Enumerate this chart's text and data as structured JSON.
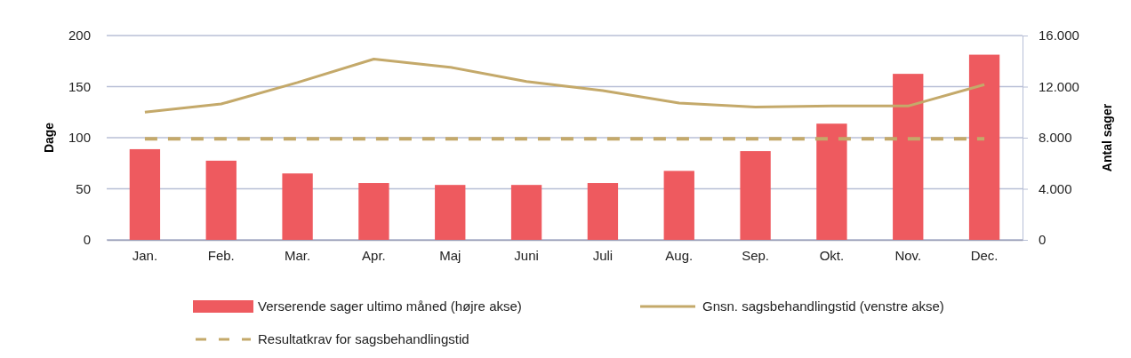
{
  "chart_data": {
    "type": "bar",
    "ylabel": "Dage",
    "y2label": "Antal sager",
    "categories": [
      "Jan.",
      "Feb.",
      "Mar.",
      "Apr.",
      "Maj",
      "Juni",
      "Juli",
      "Aug.",
      "Sep.",
      "Okt.",
      "Nov.",
      "Dec."
    ],
    "series": [
      {
        "name": "Verserende sager ultimo måned (højre akse)",
        "axis": "y2",
        "color": "#ee5a5f",
        "values": [
          7100,
          6200,
          5200,
          4450,
          4300,
          4300,
          4450,
          5400,
          6950,
          9100,
          13000,
          14500
        ]
      },
      {
        "name": "Gnsn. sagsbehandlingstid (venstre akse)",
        "type": "line",
        "color": "#c4a96a",
        "line_style": "solid",
        "values": [
          125,
          133,
          154,
          177,
          169,
          155,
          146,
          134,
          130,
          131,
          131,
          152
        ]
      },
      {
        "name": "Resultatkrav for sagsbehandlingstid",
        "type": "line",
        "color": "#c4a96a",
        "line_style": "dashed",
        "values": [
          99,
          99,
          99,
          99,
          99,
          99,
          99,
          99,
          99,
          99,
          99,
          99
        ]
      }
    ],
    "ylim": [
      0,
      200
    ],
    "yticks": [
      0,
      50,
      100,
      150,
      200
    ],
    "y2lim": [
      0,
      16000
    ],
    "y2ticks": [
      {
        "value": 0,
        "label": "0"
      },
      {
        "value": 4000,
        "label": "4.000"
      },
      {
        "value": 8000,
        "label": "8.000"
      },
      {
        "value": 12000,
        "label": "12.000"
      },
      {
        "value": 16000,
        "label": "16.000"
      }
    ],
    "grid": "y",
    "legend": "bottom",
    "marker": "none"
  }
}
